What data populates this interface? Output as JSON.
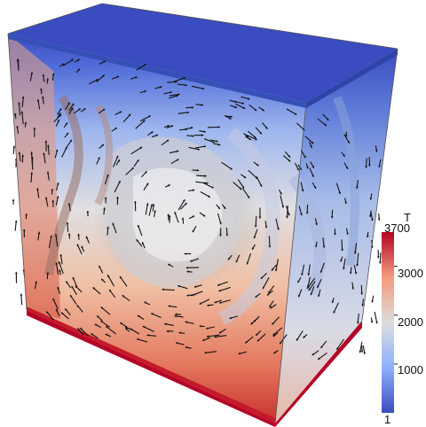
{
  "colorbar": {
    "title": "T",
    "max_label": "3700",
    "min_label": "1",
    "tick_labels": [
      "3000",
      "2000",
      "1000"
    ],
    "tick_values": [
      3000,
      2000,
      1000
    ],
    "range": [
      1,
      3700
    ]
  },
  "colormap": {
    "low": "#3b4cc0",
    "mid": "#dddddd",
    "high": "#b40426"
  }
}
